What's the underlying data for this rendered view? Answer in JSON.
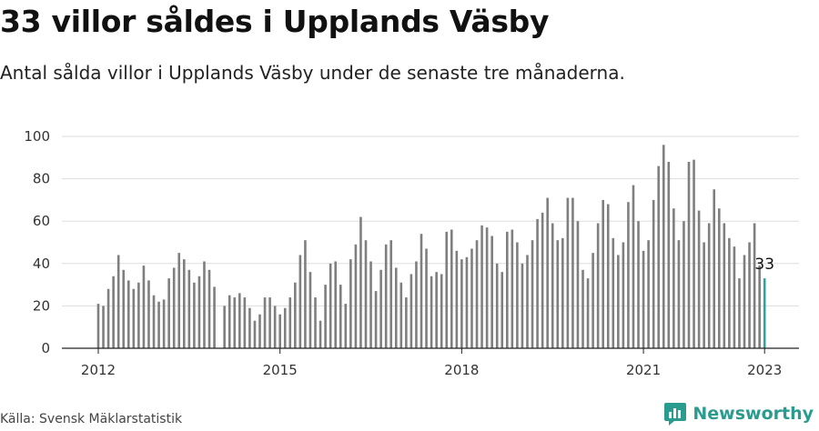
{
  "title": "33 villor såldes i Upplands Väsby",
  "subtitle": "Antal sålda villor i Upplands Väsby under de senaste tre månaderna.",
  "source": "Källa: Svensk Mäklarstatistik",
  "brand": "Newsworthy",
  "colors": {
    "bar": "#7f7f7f",
    "highlight": "#2aa5a5",
    "brand": "#2a9b8f",
    "grid": "#dddddd"
  },
  "chart_data": {
    "type": "bar",
    "title": "33 villor såldes i Upplands Väsby",
    "subtitle": "Antal sålda villor i Upplands Väsby under de senaste tre månaderna.",
    "xlabel": "",
    "ylabel": "",
    "ylim": [
      0,
      100
    ],
    "yticks": [
      0,
      20,
      40,
      60,
      80,
      100
    ],
    "xticks": [
      "2012",
      "2015",
      "2018",
      "2021",
      "2023"
    ],
    "grid": true,
    "start": "2012-01",
    "frequency": "monthly",
    "last_value_label": "33",
    "values": [
      21,
      20,
      28,
      34,
      44,
      37,
      32,
      28,
      31,
      39,
      32,
      25,
      22,
      23,
      33,
      38,
      45,
      42,
      37,
      31,
      34,
      41,
      37,
      29,
      0,
      20,
      25,
      24,
      26,
      24,
      19,
      13,
      16,
      24,
      24,
      20,
      16,
      19,
      24,
      31,
      44,
      51,
      36,
      24,
      13,
      30,
      40,
      41,
      30,
      21,
      42,
      49,
      62,
      51,
      41,
      27,
      37,
      49,
      51,
      38,
      31,
      24,
      35,
      41,
      54,
      47,
      34,
      36,
      35,
      55,
      56,
      46,
      42,
      43,
      47,
      51,
      58,
      57,
      53,
      40,
      36,
      55,
      56,
      50,
      40,
      44,
      51,
      61,
      64,
      71,
      59,
      51,
      52,
      71,
      71,
      60,
      37,
      33,
      45,
      59,
      70,
      68,
      52,
      44,
      50,
      69,
      77,
      60,
      46,
      51,
      70,
      86,
      96,
      88,
      66,
      51,
      60,
      88,
      89,
      65,
      50,
      59,
      75,
      66,
      59,
      52,
      48,
      33,
      44,
      50,
      59,
      39,
      33
    ]
  }
}
